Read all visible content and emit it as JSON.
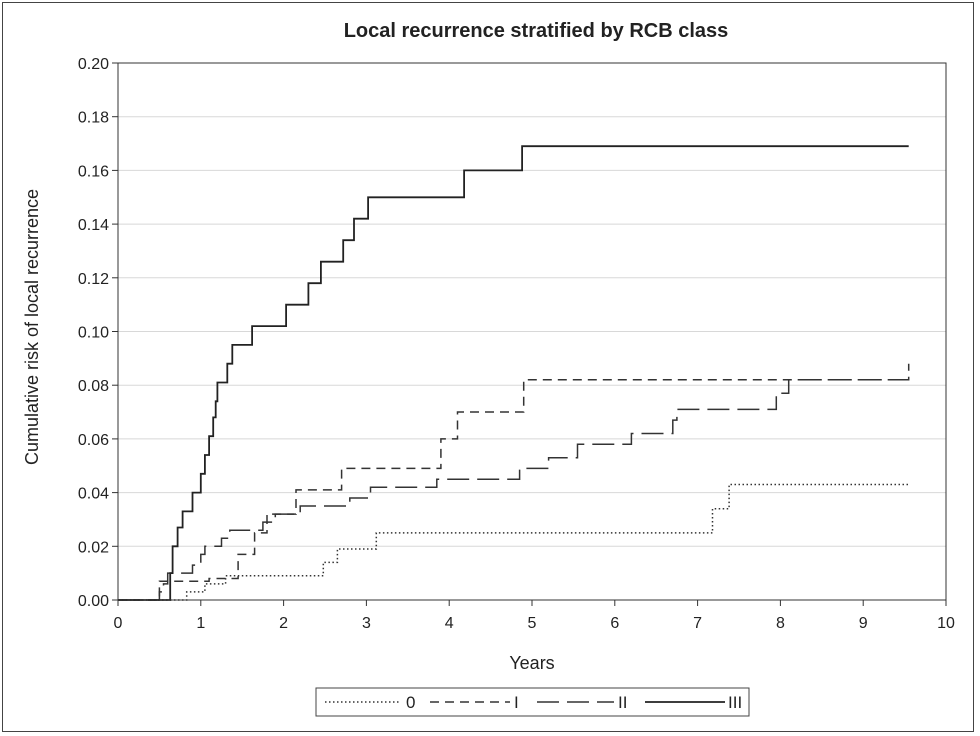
{
  "chart_data": {
    "type": "line",
    "step": true,
    "title": "Local recurrence stratified by RCB class",
    "xlabel": "Years",
    "ylabel": "Cumulative risk of local recurrence",
    "xlim": [
      0,
      10
    ],
    "ylim": [
      0,
      0.2
    ],
    "xticks": [
      "0",
      "1",
      "2",
      "3",
      "4",
      "5",
      "6",
      "7",
      "8",
      "9",
      "10"
    ],
    "yticks": [
      "0.00",
      "0.02",
      "0.04",
      "0.06",
      "0.08",
      "0.10",
      "0.12",
      "0.14",
      "0.16",
      "0.18",
      "0.20"
    ],
    "grid": "horizontal",
    "legend_position": "bottom",
    "series": [
      {
        "name": "0",
        "dash": "dotted",
        "color": "#333333",
        "points": [
          [
            0,
            0
          ],
          [
            0.83,
            0
          ],
          [
            0.83,
            0.003
          ],
          [
            1.05,
            0.003
          ],
          [
            1.05,
            0.006
          ],
          [
            1.3,
            0.006
          ],
          [
            1.3,
            0.009
          ],
          [
            2.48,
            0.009
          ],
          [
            2.48,
            0.014
          ],
          [
            2.65,
            0.014
          ],
          [
            2.65,
            0.019
          ],
          [
            3.12,
            0.019
          ],
          [
            3.12,
            0.025
          ],
          [
            7.18,
            0.025
          ],
          [
            7.18,
            0.034
          ],
          [
            7.38,
            0.034
          ],
          [
            7.38,
            0.043
          ],
          [
            9.55,
            0.043
          ]
        ]
      },
      {
        "name": "I",
        "dash": "short-dash",
        "color": "#333333",
        "points": [
          [
            0,
            0
          ],
          [
            0.5,
            0
          ],
          [
            0.5,
            0.007
          ],
          [
            1.1,
            0.007
          ],
          [
            1.1,
            0.008
          ],
          [
            1.45,
            0.008
          ],
          [
            1.45,
            0.017
          ],
          [
            1.65,
            0.017
          ],
          [
            1.65,
            0.025
          ],
          [
            1.8,
            0.025
          ],
          [
            1.8,
            0.032
          ],
          [
            2.15,
            0.032
          ],
          [
            2.15,
            0.041
          ],
          [
            2.7,
            0.041
          ],
          [
            2.7,
            0.049
          ],
          [
            3.9,
            0.049
          ],
          [
            3.9,
            0.06
          ],
          [
            4.1,
            0.06
          ],
          [
            4.1,
            0.07
          ],
          [
            4.9,
            0.07
          ],
          [
            4.9,
            0.082
          ],
          [
            9.55,
            0.082
          ],
          [
            9.55,
            0.088
          ]
        ]
      },
      {
        "name": "II",
        "dash": "long-dash",
        "color": "#333333",
        "points": [
          [
            0,
            0
          ],
          [
            0.5,
            0
          ],
          [
            0.5,
            0.003
          ],
          [
            0.55,
            0.003
          ],
          [
            0.55,
            0.006
          ],
          [
            0.6,
            0.006
          ],
          [
            0.6,
            0.01
          ],
          [
            0.9,
            0.01
          ],
          [
            0.9,
            0.013
          ],
          [
            1.0,
            0.013
          ],
          [
            1.0,
            0.017
          ],
          [
            1.05,
            0.017
          ],
          [
            1.05,
            0.02
          ],
          [
            1.25,
            0.02
          ],
          [
            1.25,
            0.023
          ],
          [
            1.35,
            0.023
          ],
          [
            1.35,
            0.026
          ],
          [
            1.75,
            0.026
          ],
          [
            1.75,
            0.029
          ],
          [
            1.9,
            0.029
          ],
          [
            1.9,
            0.032
          ],
          [
            2.2,
            0.032
          ],
          [
            2.2,
            0.035
          ],
          [
            2.8,
            0.035
          ],
          [
            2.8,
            0.038
          ],
          [
            3.05,
            0.038
          ],
          [
            3.05,
            0.042
          ],
          [
            3.85,
            0.042
          ],
          [
            3.85,
            0.045
          ],
          [
            4.85,
            0.045
          ],
          [
            4.85,
            0.049
          ],
          [
            5.2,
            0.049
          ],
          [
            5.2,
            0.053
          ],
          [
            5.55,
            0.053
          ],
          [
            5.55,
            0.058
          ],
          [
            6.2,
            0.058
          ],
          [
            6.2,
            0.062
          ],
          [
            6.7,
            0.062
          ],
          [
            6.7,
            0.067
          ],
          [
            6.75,
            0.067
          ],
          [
            6.75,
            0.071
          ],
          [
            7.95,
            0.071
          ],
          [
            7.95,
            0.077
          ],
          [
            8.1,
            0.077
          ],
          [
            8.1,
            0.082
          ],
          [
            9.55,
            0.082
          ]
        ]
      },
      {
        "name": "III",
        "dash": "solid",
        "color": "#222222",
        "points": [
          [
            0,
            0
          ],
          [
            0.63,
            0
          ],
          [
            0.63,
            0.01
          ],
          [
            0.66,
            0.01
          ],
          [
            0.66,
            0.02
          ],
          [
            0.72,
            0.02
          ],
          [
            0.72,
            0.027
          ],
          [
            0.78,
            0.027
          ],
          [
            0.78,
            0.033
          ],
          [
            0.9,
            0.033
          ],
          [
            0.9,
            0.04
          ],
          [
            1.0,
            0.04
          ],
          [
            1.0,
            0.047
          ],
          [
            1.05,
            0.047
          ],
          [
            1.05,
            0.054
          ],
          [
            1.1,
            0.054
          ],
          [
            1.1,
            0.061
          ],
          [
            1.15,
            0.061
          ],
          [
            1.15,
            0.068
          ],
          [
            1.18,
            0.068
          ],
          [
            1.18,
            0.074
          ],
          [
            1.2,
            0.074
          ],
          [
            1.2,
            0.081
          ],
          [
            1.32,
            0.081
          ],
          [
            1.32,
            0.088
          ],
          [
            1.38,
            0.088
          ],
          [
            1.38,
            0.095
          ],
          [
            1.62,
            0.095
          ],
          [
            1.62,
            0.102
          ],
          [
            2.03,
            0.102
          ],
          [
            2.03,
            0.11
          ],
          [
            2.3,
            0.11
          ],
          [
            2.3,
            0.118
          ],
          [
            2.45,
            0.118
          ],
          [
            2.45,
            0.126
          ],
          [
            2.72,
            0.126
          ],
          [
            2.72,
            0.134
          ],
          [
            2.85,
            0.134
          ],
          [
            2.85,
            0.142
          ],
          [
            3.02,
            0.142
          ],
          [
            3.02,
            0.15
          ],
          [
            4.18,
            0.15
          ],
          [
            4.18,
            0.16
          ],
          [
            4.88,
            0.16
          ],
          [
            4.88,
            0.169
          ],
          [
            9.55,
            0.169
          ]
        ]
      }
    ]
  }
}
